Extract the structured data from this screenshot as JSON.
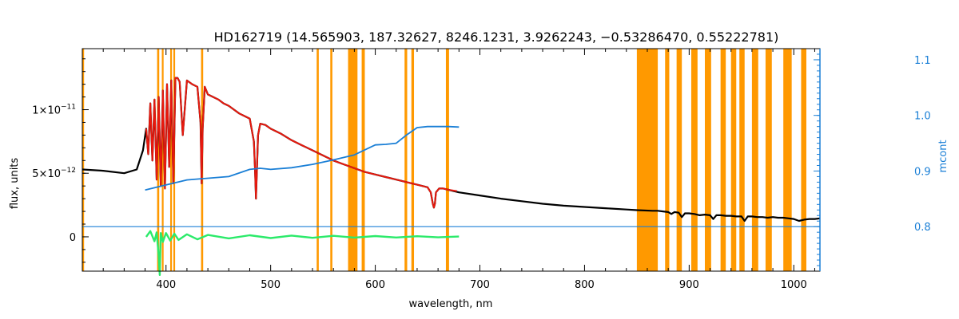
{
  "chart_data": {
    "type": "line",
    "title": "HD162719    (14.565903, 187.32627, 8246.1231, 3.9262243, −0.53286470, 0.55222781)",
    "xlabel": "wavelength, nm",
    "ylabel": "flux, units",
    "y2label": "mcont",
    "xlim": [
      320,
      1025
    ],
    "ylim": [
      -2.7e-12,
      1.48e-11
    ],
    "y2lim": [
      0.72,
      1.12
    ],
    "grid": false,
    "x_ticks": [
      400,
      500,
      600,
      700,
      800,
      900,
      1000
    ],
    "x_tick_labels": [
      "400",
      "500",
      "600",
      "700",
      "800",
      "900",
      "1000"
    ],
    "y_ticks": [
      {
        "value": 0,
        "label": "0"
      },
      {
        "value": 5e-12,
        "mant": "5×10",
        "exp": "−12"
      },
      {
        "value": 1e-11,
        "mant": "1×10",
        "exp": "−11"
      }
    ],
    "y2_ticks": [
      0.8,
      0.9,
      1.0,
      1.1
    ],
    "y2_tick_labels": [
      "0.8",
      "0.9",
      "1.0",
      "1.1"
    ],
    "colors": {
      "observed": "#000000",
      "model": "#e8190e",
      "mcont": "#1a7fd6",
      "residual": "#2bea6a",
      "masked": "#ff9900",
      "right_axis": "#1a7fd6"
    },
    "masked_regions_nm": [
      [
        320,
        321.5
      ],
      [
        391.5,
        393.5
      ],
      [
        396,
        397.5
      ],
      [
        404,
        405.5
      ],
      [
        407,
        408.5
      ],
      [
        433.5,
        435.5
      ],
      [
        544,
        546
      ],
      [
        557,
        559
      ],
      [
        574,
        583
      ],
      [
        587,
        590
      ],
      [
        628,
        630.5
      ],
      [
        634.5,
        637
      ],
      [
        667.5,
        670.5
      ],
      [
        850,
        870
      ],
      [
        877,
        881
      ],
      [
        888,
        893
      ],
      [
        902,
        908
      ],
      [
        915,
        921
      ],
      [
        930,
        935
      ],
      [
        940,
        945
      ],
      [
        948,
        953
      ],
      [
        960,
        966
      ],
      [
        973,
        979
      ],
      [
        990,
        998
      ],
      [
        1007,
        1012
      ]
    ],
    "series": [
      {
        "name": "observed",
        "role": "flux",
        "x": [
          320,
          340,
          360,
          372,
          378,
          381,
          383,
          385,
          387,
          389,
          391,
          393,
          395,
          397,
          399,
          401,
          403,
          405,
          407,
          409,
          411,
          413,
          416,
          420,
          425,
          430,
          433,
          434,
          435,
          437,
          440,
          445,
          450,
          455,
          460,
          465,
          470,
          475,
          480,
          484,
          485,
          486,
          487,
          488,
          490,
          495,
          500,
          510,
          520,
          530,
          540,
          550,
          560,
          570,
          580,
          590,
          600,
          610,
          620,
          630,
          640,
          650,
          653,
          655,
          656,
          657,
          658,
          661,
          665,
          670,
          680,
          700,
          720,
          740,
          760,
          780,
          800,
          820,
          840,
          850,
          865,
          870,
          875,
          880,
          883,
          886,
          890,
          893,
          896,
          900,
          905,
          910,
          915,
          920,
          923,
          926,
          930,
          935,
          940,
          945,
          950,
          953,
          956,
          960,
          965,
          970,
          975,
          980,
          985,
          990,
          995,
          1000,
          1005,
          1010,
          1015,
          1020,
          1025
        ],
        "values": [
          5.3e-12,
          5.2e-12,
          5e-12,
          5.3e-12,
          6.8e-12,
          8.5e-12,
          6.5e-12,
          1.05e-11,
          6e-12,
          1.08e-11,
          4.5e-12,
          1.1e-11,
          4e-12,
          1.15e-11,
          3.8e-12,
          1.2e-11,
          5.5e-12,
          1.23e-11,
          4.2e-12,
          1.25e-11,
          1.25e-11,
          1.22e-11,
          8e-12,
          1.23e-11,
          1.2e-11,
          1.18e-11,
          9e-12,
          4.2e-12,
          8.5e-12,
          1.18e-11,
          1.12e-11,
          1.1e-11,
          1.08e-11,
          1.05e-11,
          1.03e-11,
          1e-11,
          9.7e-12,
          9.5e-12,
          9.3e-12,
          7.5e-12,
          5.5e-12,
          3e-12,
          5.5e-12,
          8e-12,
          8.9e-12,
          8.8e-12,
          8.5e-12,
          8.1e-12,
          7.6e-12,
          7.2e-12,
          6.8e-12,
          6.4e-12,
          6e-12,
          5.7e-12,
          5.4e-12,
          5.1e-12,
          4.9e-12,
          4.7e-12,
          4.5e-12,
          4.3e-12,
          4.1e-12,
          3.9e-12,
          3.5e-12,
          2.6e-12,
          2.3e-12,
          2.6e-12,
          3.5e-12,
          3.8e-12,
          3.8e-12,
          3.7e-12,
          3.5e-12,
          3.25e-12,
          3e-12,
          2.8e-12,
          2.6e-12,
          2.45e-12,
          2.35e-12,
          2.25e-12,
          2.15e-12,
          2.1e-12,
          2.05e-12,
          2.05e-12,
          2e-12,
          1.95e-12,
          1.8e-12,
          1.95e-12,
          1.9e-12,
          1.55e-12,
          1.85e-12,
          1.85e-12,
          1.8e-12,
          1.7e-12,
          1.75e-12,
          1.7e-12,
          1.4e-12,
          1.7e-12,
          1.7e-12,
          1.65e-12,
          1.65e-12,
          1.6e-12,
          1.6e-12,
          1.25e-12,
          1.6e-12,
          1.6e-12,
          1.55e-12,
          1.55e-12,
          1.5e-12,
          1.55e-12,
          1.5e-12,
          1.5e-12,
          1.45e-12,
          1.4e-12,
          1.25e-12,
          1.35e-12,
          1.4e-12,
          1.4e-12,
          1.45e-12
        ]
      },
      {
        "name": "model",
        "role": "flux",
        "x": [
          381,
          383,
          385,
          387,
          389,
          391,
          393,
          395,
          397,
          399,
          401,
          403,
          405,
          407,
          409,
          411,
          413,
          416,
          420,
          425,
          430,
          433,
          434,
          435,
          437,
          440,
          445,
          450,
          455,
          460,
          465,
          470,
          475,
          480,
          484,
          485,
          486,
          487,
          488,
          490,
          495,
          500,
          510,
          520,
          530,
          540,
          550,
          560,
          570,
          580,
          590,
          600,
          610,
          620,
          630,
          640,
          650,
          653,
          655,
          656,
          657,
          658,
          661,
          665,
          670,
          678
        ],
        "values": [
          8.5e-12,
          6.5e-12,
          1.05e-11,
          6e-12,
          1.08e-11,
          4.5e-12,
          1.1e-11,
          4e-12,
          1.15e-11,
          3.8e-12,
          1.2e-11,
          5.5e-12,
          1.23e-11,
          4.2e-12,
          1.25e-11,
          1.25e-11,
          1.22e-11,
          8e-12,
          1.23e-11,
          1.2e-11,
          1.18e-11,
          9e-12,
          4.2e-12,
          8.5e-12,
          1.18e-11,
          1.12e-11,
          1.1e-11,
          1.08e-11,
          1.05e-11,
          1.03e-11,
          1e-11,
          9.7e-12,
          9.5e-12,
          9.3e-12,
          7.5e-12,
          5.5e-12,
          3e-12,
          5.5e-12,
          8e-12,
          8.9e-12,
          8.8e-12,
          8.5e-12,
          8.1e-12,
          7.6e-12,
          7.2e-12,
          6.8e-12,
          6.4e-12,
          6e-12,
          5.7e-12,
          5.4e-12,
          5.1e-12,
          4.9e-12,
          4.7e-12,
          4.5e-12,
          4.3e-12,
          4.1e-12,
          3.9e-12,
          3.5e-12,
          2.6e-12,
          2.3e-12,
          2.6e-12,
          3.5e-12,
          3.8e-12,
          3.8e-12,
          3.7e-12,
          3.6e-12
        ]
      },
      {
        "name": "mcont",
        "role": "mcont",
        "x": [
          380,
          400,
          420,
          440,
          460,
          480,
          490,
          500,
          520,
          540,
          560,
          580,
          600,
          610,
          620,
          630,
          640,
          650,
          660,
          670,
          680
        ],
        "values": [
          0.866,
          0.875,
          0.884,
          0.887,
          0.89,
          0.903,
          0.905,
          0.903,
          0.906,
          0.912,
          0.92,
          0.929,
          0.947,
          0.948,
          0.95,
          0.965,
          0.978,
          0.98,
          0.98,
          0.98,
          0.979
        ]
      },
      {
        "name": "mcont-tail",
        "role": "mcont",
        "x": [
          320,
          1025
        ],
        "values": [
          0.8,
          0.8
        ]
      },
      {
        "name": "residual",
        "role": "residual",
        "x": [
          381,
          385,
          389,
          391,
          393,
          394,
          395,
          397,
          400,
          404,
          408,
          412,
          420,
          430,
          440,
          460,
          480,
          500,
          520,
          540,
          560,
          580,
          600,
          620,
          640,
          660,
          680
        ],
        "values": [
          0.0,
          4.5e-13,
          -3.5e-13,
          3.5e-13,
          -1.5e-12,
          -3e-12,
          3e-13,
          -4e-13,
          3e-13,
          -3e-13,
          2.5e-13,
          -2.5e-13,
          2e-13,
          -2e-13,
          1.5e-13,
          -1.2e-13,
          1.2e-13,
          -1e-13,
          1e-13,
          -8e-14,
          8e-14,
          -6e-14,
          6e-14,
          -5e-14,
          5e-14,
          -4e-14,
          2e-14
        ]
      }
    ]
  }
}
